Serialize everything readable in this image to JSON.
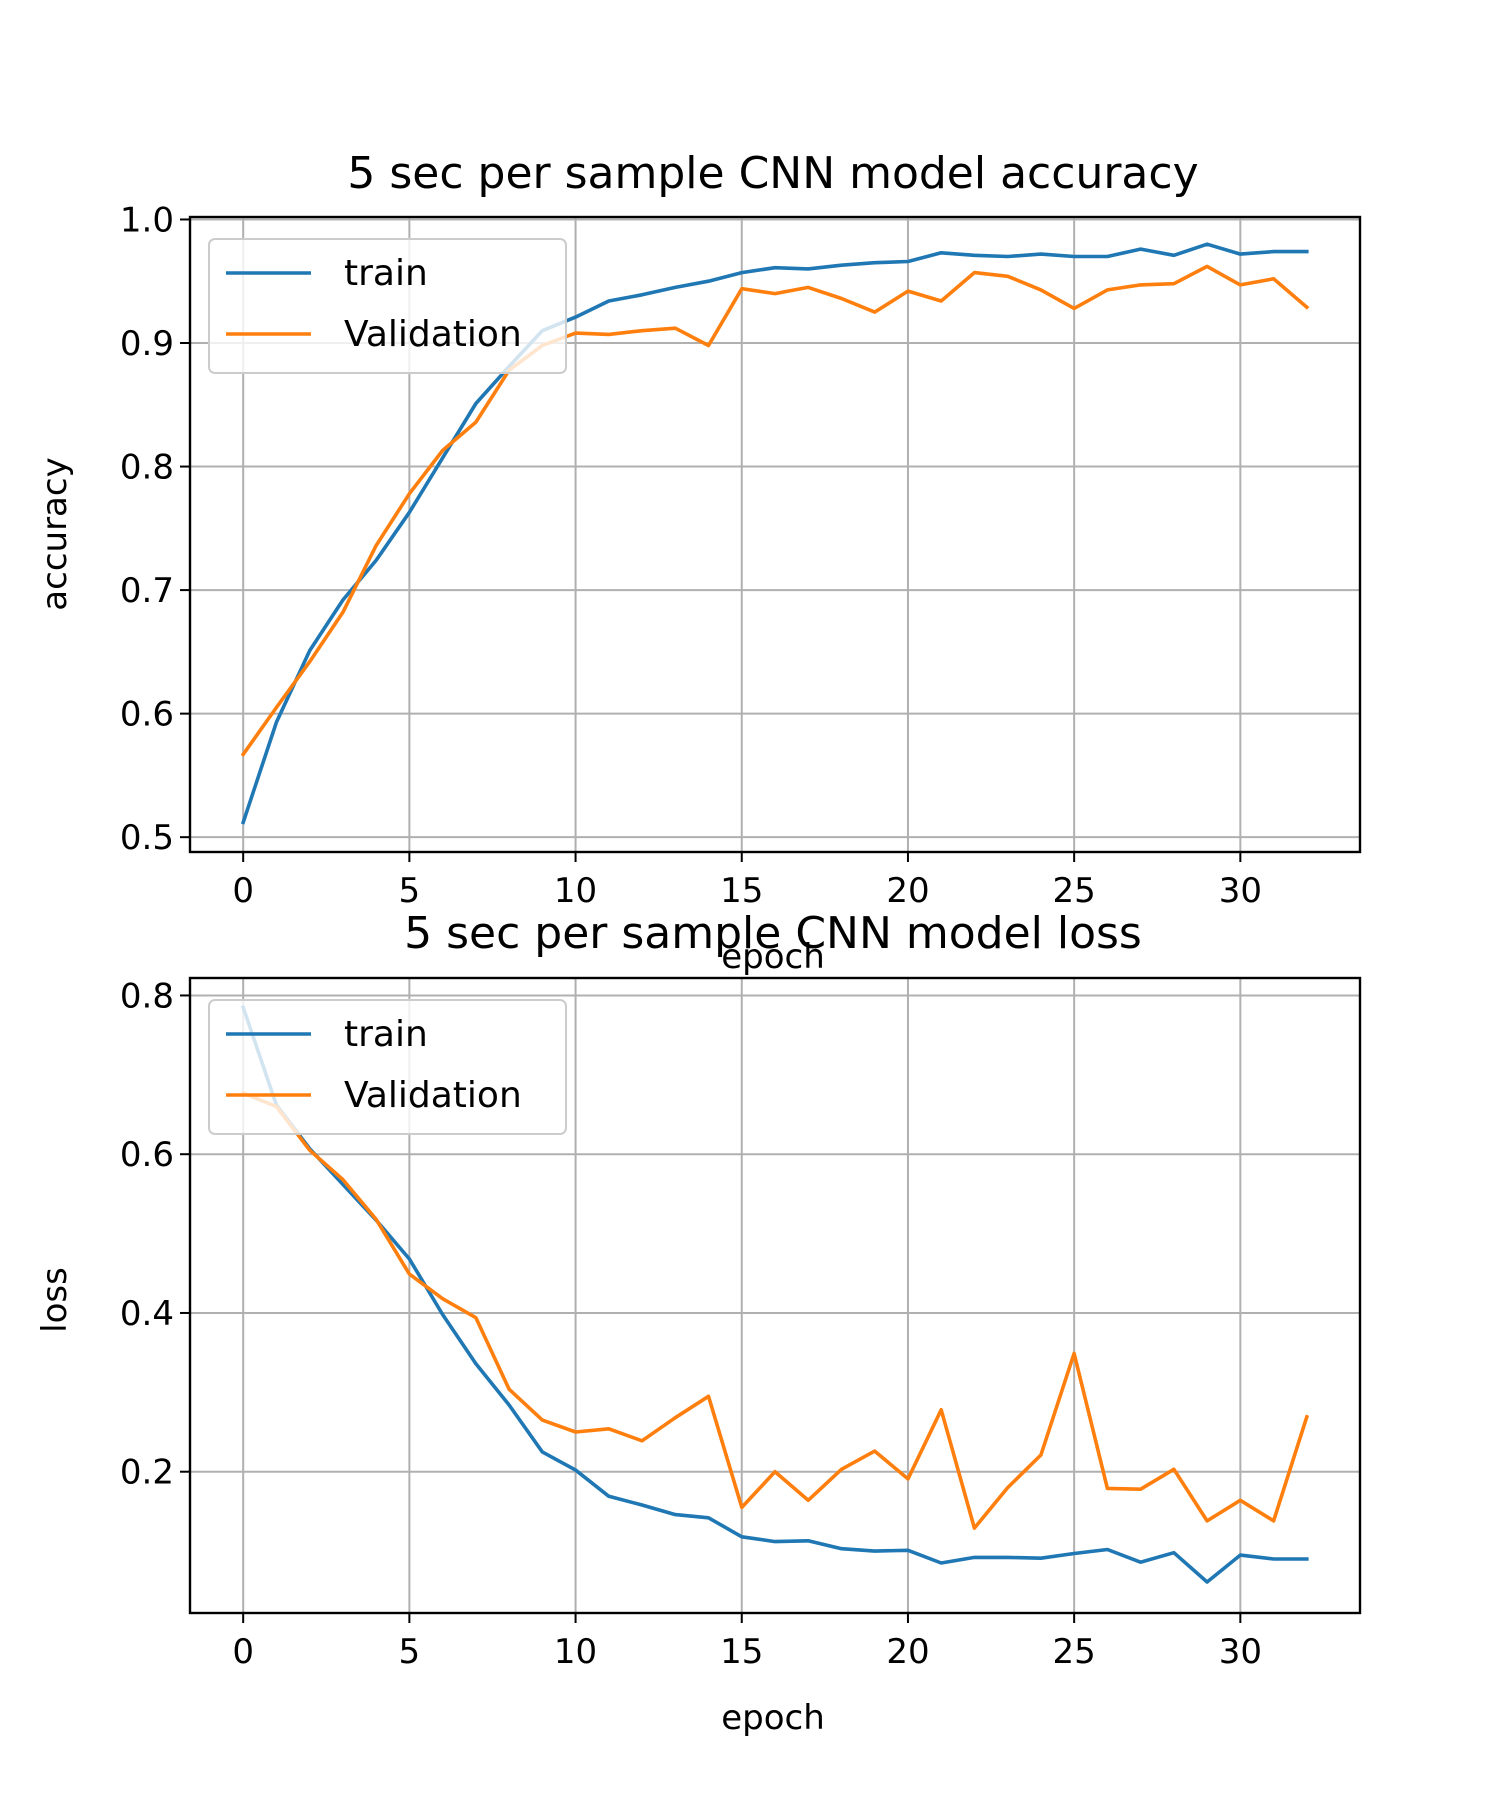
{
  "chart_data": [
    {
      "type": "line",
      "title": "5 sec per sample CNN model accuracy",
      "xlabel": "epoch",
      "ylabel": "accuracy",
      "xlim": [
        -1.6,
        33.6
      ],
      "ylim": [
        0.488,
        1.002
      ],
      "xticks": [
        0,
        5,
        10,
        15,
        20,
        25,
        30
      ],
      "yticks": [
        0.5,
        0.6,
        0.7,
        0.8,
        0.9,
        1.0
      ],
      "ytick_decimals": 1,
      "grid": true,
      "legend_position": "upper left",
      "x": [
        0,
        1,
        2,
        3,
        4,
        5,
        6,
        7,
        8,
        9,
        10,
        11,
        12,
        13,
        14,
        15,
        16,
        17,
        18,
        19,
        20,
        21,
        22,
        23,
        24,
        25,
        26,
        27,
        28,
        29,
        30,
        31,
        32
      ],
      "series": [
        {
          "name": "train",
          "color": "#1f77b4",
          "values": [
            0.512,
            0.593,
            0.651,
            0.692,
            0.724,
            0.763,
            0.807,
            0.851,
            0.881,
            0.91,
            0.921,
            0.934,
            0.939,
            0.945,
            0.95,
            0.957,
            0.961,
            0.96,
            0.963,
            0.965,
            0.966,
            0.973,
            0.971,
            0.97,
            0.972,
            0.97,
            0.97,
            0.976,
            0.971,
            0.98,
            0.972,
            0.974,
            0.974
          ]
        },
        {
          "name": "Validation",
          "color": "#ff7f0e",
          "values": [
            0.567,
            0.605,
            0.642,
            0.682,
            0.736,
            0.778,
            0.813,
            0.836,
            0.878,
            0.898,
            0.908,
            0.907,
            0.91,
            0.912,
            0.898,
            0.944,
            0.94,
            0.945,
            0.936,
            0.925,
            0.942,
            0.934,
            0.957,
            0.954,
            0.943,
            0.928,
            0.943,
            0.947,
            0.948,
            0.962,
            0.947,
            0.952,
            0.929
          ]
        }
      ]
    },
    {
      "type": "line",
      "title": "5 sec per sample CNN model loss",
      "xlabel": "epoch",
      "ylabel": "loss",
      "xlim": [
        -1.6,
        33.6
      ],
      "ylim": [
        0.022,
        0.822
      ],
      "xticks": [
        0,
        5,
        10,
        15,
        20,
        25,
        30
      ],
      "yticks": [
        0.2,
        0.4,
        0.6,
        0.8
      ],
      "ytick_decimals": 1,
      "grid": true,
      "legend_position": "upper left",
      "x": [
        0,
        1,
        2,
        3,
        4,
        5,
        6,
        7,
        8,
        9,
        10,
        11,
        12,
        13,
        14,
        15,
        16,
        17,
        18,
        19,
        20,
        21,
        22,
        23,
        24,
        25,
        26,
        27,
        28,
        29,
        30,
        31,
        32
      ],
      "series": [
        {
          "name": "train",
          "color": "#1f77b4",
          "values": [
            0.785,
            0.662,
            0.607,
            0.562,
            0.517,
            0.468,
            0.398,
            0.336,
            0.284,
            0.225,
            0.202,
            0.169,
            0.158,
            0.146,
            0.142,
            0.118,
            0.112,
            0.113,
            0.103,
            0.1,
            0.101,
            0.085,
            0.092,
            0.092,
            0.091,
            0.097,
            0.102,
            0.086,
            0.098,
            0.061,
            0.095,
            0.09,
            0.09
          ]
        },
        {
          "name": "Validation",
          "color": "#ff7f0e",
          "values": [
            0.677,
            0.66,
            0.605,
            0.568,
            0.518,
            0.449,
            0.418,
            0.394,
            0.304,
            0.265,
            0.25,
            0.254,
            0.239,
            0.268,
            0.295,
            0.155,
            0.2,
            0.164,
            0.203,
            0.226,
            0.191,
            0.278,
            0.129,
            0.18,
            0.221,
            0.349,
            0.179,
            0.178,
            0.203,
            0.138,
            0.164,
            0.138,
            0.269
          ]
        }
      ]
    }
  ]
}
